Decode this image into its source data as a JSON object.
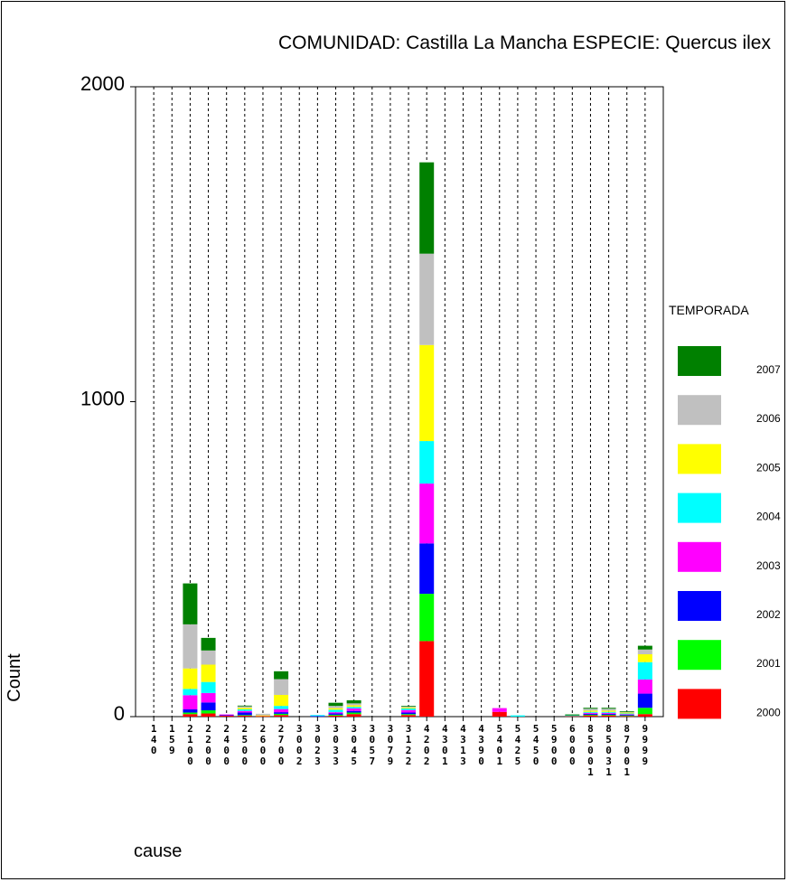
{
  "chart_data": {
    "type": "bar",
    "stacked": true,
    "title": "COMUNIDAD: Castilla La Mancha ESPECIE: Quercus ilex",
    "xlabel": "cause",
    "ylabel": "Count",
    "ylim": [
      0,
      2000
    ],
    "yticks": [
      0,
      1000,
      2000
    ],
    "grid": "vertical dashed",
    "legend": {
      "title": "TEMPORADA",
      "position": "right"
    },
    "categories": [
      "140",
      "159",
      "2100",
      "2200",
      "2400",
      "2500",
      "2600",
      "2700",
      "3002",
      "3023",
      "3033",
      "3045",
      "3057",
      "3079",
      "3122",
      "4202",
      "4301",
      "4313",
      "4390",
      "5401",
      "5425",
      "5450",
      "5900",
      "6000",
      "85001",
      "85031",
      "87001",
      "9999"
    ],
    "series": [
      {
        "name": "2000",
        "color": "#ff0000",
        "values": [
          0,
          0,
          8,
          10,
          3,
          3,
          2,
          5,
          0,
          0,
          3,
          8,
          0,
          0,
          5,
          240,
          0,
          0,
          0,
          15,
          0,
          0,
          0,
          2,
          4,
          4,
          2,
          8
        ]
      },
      {
        "name": "2001",
        "color": "#00ff00",
        "values": [
          0,
          0,
          5,
          10,
          0,
          2,
          0,
          4,
          0,
          0,
          3,
          5,
          0,
          0,
          3,
          150,
          0,
          0,
          0,
          0,
          0,
          0,
          0,
          0,
          2,
          2,
          2,
          20
        ]
      },
      {
        "name": "2002",
        "color": "#0000ff",
        "values": [
          0,
          0,
          10,
          25,
          2,
          8,
          0,
          5,
          0,
          2,
          4,
          5,
          0,
          0,
          5,
          160,
          0,
          0,
          0,
          0,
          0,
          0,
          0,
          0,
          3,
          3,
          2,
          45
        ]
      },
      {
        "name": "2003",
        "color": "#ff00ff",
        "values": [
          0,
          0,
          45,
          30,
          2,
          5,
          0,
          10,
          0,
          0,
          4,
          8,
          0,
          0,
          8,
          190,
          0,
          0,
          0,
          12,
          0,
          0,
          0,
          0,
          3,
          3,
          2,
          45
        ]
      },
      {
        "name": "2004",
        "color": "#00ffff",
        "values": [
          0,
          0,
          20,
          35,
          0,
          5,
          0,
          10,
          0,
          3,
          8,
          5,
          0,
          0,
          5,
          135,
          0,
          0,
          0,
          0,
          4,
          0,
          0,
          2,
          3,
          3,
          2,
          55
        ]
      },
      {
        "name": "2005",
        "color": "#ffff00",
        "values": [
          0,
          0,
          65,
          55,
          0,
          5,
          2,
          35,
          0,
          0,
          5,
          5,
          0,
          0,
          3,
          305,
          0,
          0,
          0,
          0,
          0,
          0,
          0,
          0,
          4,
          4,
          3,
          25
        ]
      },
      {
        "name": "2006",
        "color": "#c0c0c0",
        "values": [
          0,
          0,
          140,
          45,
          0,
          5,
          5,
          50,
          0,
          0,
          7,
          6,
          0,
          0,
          3,
          290,
          0,
          0,
          0,
          0,
          0,
          0,
          0,
          0,
          6,
          6,
          2,
          15
        ]
      },
      {
        "name": "2007",
        "color": "#008000",
        "values": [
          0,
          0,
          130,
          40,
          0,
          2,
          0,
          25,
          0,
          0,
          10,
          10,
          0,
          0,
          2,
          290,
          0,
          0,
          0,
          0,
          0,
          0,
          0,
          3,
          3,
          3,
          2,
          12
        ]
      }
    ]
  }
}
